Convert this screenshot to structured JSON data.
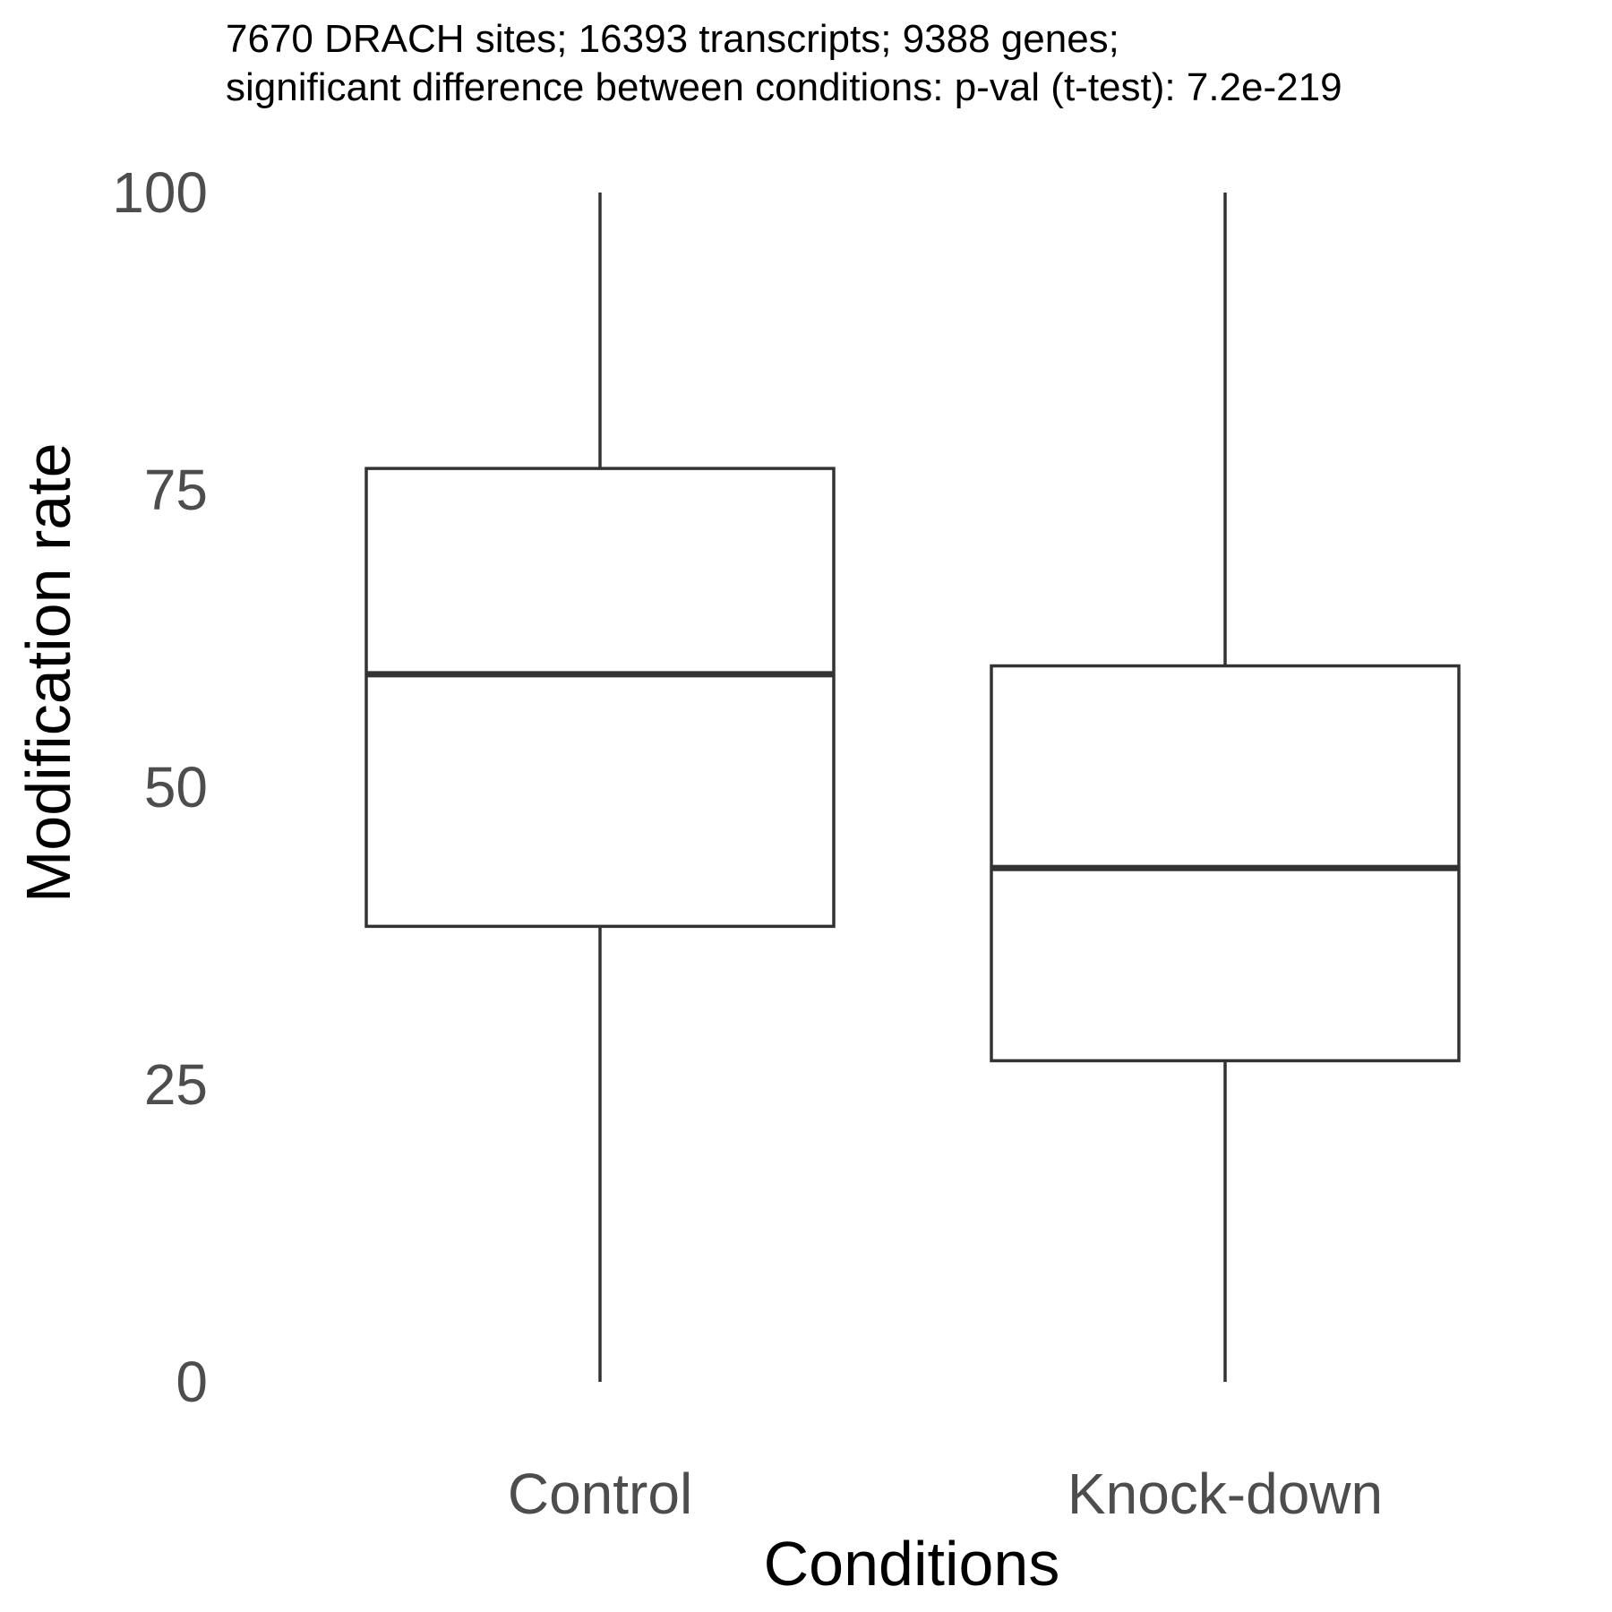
{
  "chart_data": {
    "type": "boxplot",
    "subtitle_lines": [
      "7670 DRACH sites; 16393 transcripts; 9388 genes;",
      "significant difference between conditions: p-val (t-test): 7.2e-219"
    ],
    "xlabel": "Conditions",
    "ylabel": "Modification rate",
    "ylim": [
      0,
      100
    ],
    "yticks": [
      "0",
      "25",
      "50",
      "75",
      "100"
    ],
    "grid": false,
    "categories": [
      "Control",
      "Knock-down"
    ],
    "boxes": [
      {
        "category": "Control",
        "min": 0,
        "q1": 38.3,
        "median": 59.5,
        "q3": 76.8,
        "max": 100
      },
      {
        "category": "Knock-down",
        "min": 0,
        "q1": 27.0,
        "median": 43.2,
        "q3": 60.2,
        "max": 100
      }
    ]
  }
}
